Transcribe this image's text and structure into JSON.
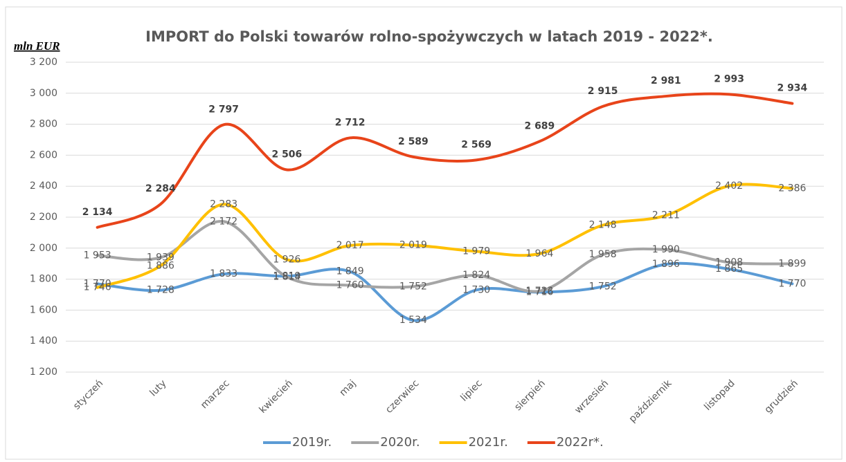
{
  "chart_data": {
    "type": "line",
    "title": "IMPORT do Polski towarów rolno-spożywczych w latach 2019 - 2022*.",
    "y_label": "mln EUR",
    "categories": [
      "styczeń",
      "luty",
      "marzec",
      "kwiecień",
      "maj",
      "czerwiec",
      "lipiec",
      "sierpień",
      "wrzesień",
      "październik",
      "listopad",
      "grudzień"
    ],
    "series": [
      {
        "name": "2019r.",
        "color": "#5b9bd5",
        "values": [
          1770,
          1728,
          1833,
          1819,
          1849,
          1534,
          1730,
          1716,
          1752,
          1896,
          1865,
          1770
        ],
        "value_labels": [
          "1 770",
          "1 728",
          "1 833",
          "1 819",
          "1 849",
          "1 534",
          "1 730",
          "1 716",
          "1 752",
          "1 896",
          "1 865",
          "1 770"
        ]
      },
      {
        "name": "2020r.",
        "color": "#a5a5a5",
        "values": [
          1953,
          1939,
          2172,
          1814,
          1760,
          1752,
          1824,
          1723,
          1958,
          1990,
          1908,
          1899
        ],
        "value_labels": [
          "1 953",
          "1 939",
          "2 172",
          "1 814",
          "1 760",
          "1 752",
          "1 824",
          "1 723",
          "1 958",
          "1 990",
          "1 908",
          "1 899"
        ]
      },
      {
        "name": "2021r.",
        "color": "#ffc000",
        "values": [
          1746,
          1886,
          2283,
          1926,
          2017,
          2019,
          1979,
          1964,
          2148,
          2211,
          2402,
          2386
        ],
        "value_labels": [
          "1 746",
          "1 886",
          "2 283",
          "1 926",
          "2 017",
          "2 019",
          "1 979",
          "1 964",
          "2 148",
          "2 211",
          "2 402",
          "2 386"
        ]
      },
      {
        "name": "2022r*.",
        "color": "#e8441a",
        "values": [
          2134,
          2284,
          2797,
          2506,
          2712,
          2589,
          2569,
          2689,
          2915,
          2981,
          2993,
          2934
        ],
        "value_labels": [
          "2 134",
          "2 284",
          "2 797",
          "2 506",
          "2 712",
          "2 589",
          "2 569",
          "2 689",
          "2 915",
          "2 981",
          "2 993",
          "2 934"
        ]
      }
    ],
    "ylim": [
      1200,
      3200
    ],
    "yticks": [
      {
        "value": 1200,
        "label": "1 200"
      },
      {
        "value": 1400,
        "label": "1 400"
      },
      {
        "value": 1600,
        "label": "1 600"
      },
      {
        "value": 1800,
        "label": "1 800"
      },
      {
        "value": 2000,
        "label": "2 000"
      },
      {
        "value": 2200,
        "label": "2 200"
      },
      {
        "value": 2400,
        "label": "2 400"
      },
      {
        "value": 2600,
        "label": "2 600"
      },
      {
        "value": 2800,
        "label": "2 800"
      },
      {
        "value": 3000,
        "label": "3 000"
      },
      {
        "value": 3200,
        "label": "3 200"
      }
    ],
    "grid": true,
    "legend": "bottom"
  }
}
